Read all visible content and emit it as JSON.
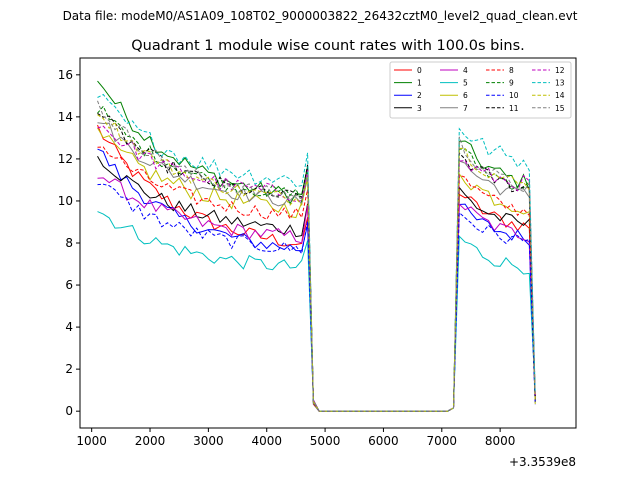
{
  "suptitle": "Data file: modeM0/AS1A09_108T02_9000003822_26432cztM0_level2_quad_clean.evt",
  "chart_data": {
    "type": "line",
    "title": "Quadrant 1 module wise count rates with 100.0s bins.",
    "xlabel": "",
    "ylabel": "",
    "x_offset_label": "+3.3539e8",
    "xlim": [
      800,
      9300
    ],
    "ylim": [
      -0.8,
      16.8
    ],
    "xticks": [
      1000,
      2000,
      3000,
      4000,
      5000,
      6000,
      7000,
      8000
    ],
    "yticks": [
      0,
      2,
      4,
      6,
      8,
      10,
      12,
      14,
      16
    ],
    "grid": false,
    "legend_position": "top-right",
    "legend_columns": 4,
    "segments": [
      {
        "x_start": 1100,
        "x_end": 4700,
        "step": 100
      },
      {
        "x_start": 4800,
        "x_end": 7200,
        "step": 100
      },
      {
        "x_start": 7300,
        "x_end": 8600,
        "step": 100
      }
    ],
    "series": [
      {
        "name": "0",
        "color": "#ff0000",
        "dash": "solid",
        "level": [
          13.5,
          7.5,
          10.5,
          8.5
        ],
        "jitter": 0.35
      },
      {
        "name": "1",
        "color": "#008000",
        "dash": "solid",
        "level": [
          15.9,
          9.7,
          13.0,
          10.5
        ],
        "jitter": 0.4
      },
      {
        "name": "2",
        "color": "#0000ff",
        "dash": "solid",
        "level": [
          12.5,
          7.3,
          9.8,
          8.0
        ],
        "jitter": 0.35
      },
      {
        "name": "3",
        "color": "#000000",
        "dash": "solid",
        "level": [
          12.2,
          8.3,
          10.5,
          8.6
        ],
        "jitter": 0.35
      },
      {
        "name": "4",
        "color": "#bf00bf",
        "dash": "solid",
        "level": [
          11.4,
          8.0,
          10.0,
          8.1
        ],
        "jitter": 0.35
      },
      {
        "name": "5",
        "color": "#00bfbf",
        "dash": "solid",
        "level": [
          9.6,
          6.6,
          8.3,
          6.6
        ],
        "jitter": 0.35
      },
      {
        "name": "6",
        "color": "#bfbf00",
        "dash": "solid",
        "level": [
          13.2,
          9.3,
          11.5,
          9.4
        ],
        "jitter": 0.45
      },
      {
        "name": "7",
        "color": "#808080",
        "dash": "solid",
        "level": [
          14.0,
          9.6,
          12.0,
          10.0
        ],
        "jitter": 0.35
      },
      {
        "name": "8",
        "color": "#ff0000",
        "dash": "dashed",
        "level": [
          12.8,
          9.0,
          11.3,
          9.2
        ],
        "jitter": 0.35
      },
      {
        "name": "9",
        "color": "#008000",
        "dash": "dashed",
        "level": [
          14.5,
          9.9,
          12.6,
          10.4
        ],
        "jitter": 0.35
      },
      {
        "name": "10",
        "color": "#0000ff",
        "dash": "dashed",
        "level": [
          11.0,
          7.4,
          9.5,
          7.8
        ],
        "jitter": 0.35
      },
      {
        "name": "11",
        "color": "#000000",
        "dash": "dashed",
        "level": [
          14.3,
          9.8,
          12.3,
          10.3
        ],
        "jitter": 0.35
      },
      {
        "name": "12",
        "color": "#bf00bf",
        "dash": "dashed",
        "level": [
          13.8,
          10.0,
          12.0,
          10.6
        ],
        "jitter": 0.4
      },
      {
        "name": "13",
        "color": "#00bfbf",
        "dash": "dashed",
        "level": [
          15.0,
          10.6,
          13.6,
          11.6
        ],
        "jitter": 0.45
      },
      {
        "name": "14",
        "color": "#bfbf00",
        "dash": "dashed",
        "level": [
          14.4,
          9.7,
          12.7,
          10.4
        ],
        "jitter": 0.35
      },
      {
        "name": "15",
        "color": "#808080",
        "dash": "dashed",
        "level": [
          14.6,
          9.8,
          12.8,
          10.3
        ],
        "jitter": 0.35
      }
    ]
  }
}
